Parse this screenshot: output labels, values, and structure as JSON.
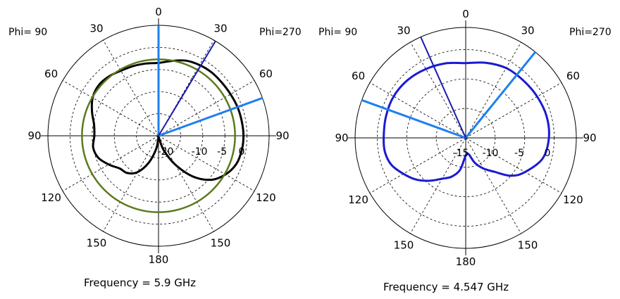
{
  "chart_data": [
    {
      "type": "polar",
      "frequency_label": "Frequency = 5.9 GHz",
      "phi_left": "Phi= 90",
      "phi_right": "Phi=270",
      "angle_labels": [
        "0",
        "30",
        "30",
        "60",
        "60",
        "90",
        "90",
        "120",
        "120",
        "150",
        "150",
        "180"
      ],
      "radial_labels": [
        "-20",
        "-10",
        "-5",
        "0"
      ],
      "radial_levels": [
        -20,
        -15,
        -10,
        -5,
        0
      ],
      "rlim": [
        -20,
        0
      ],
      "grid": true,
      "series": [
        {
          "color": "#000000",
          "points": [
            [
              0,
              -3.5
            ],
            [
              10,
              -2.8
            ],
            [
              20,
              -1.9
            ],
            [
              30,
              -1.5
            ],
            [
              40,
              -1.3
            ],
            [
              50,
              -1.3
            ],
            [
              60,
              -1.2
            ],
            [
              70,
              -1.0
            ],
            [
              80,
              -0.9
            ],
            [
              90,
              -0.8
            ],
            [
              100,
              -0.9
            ],
            [
              110,
              -1.3
            ],
            [
              120,
              -2.5
            ],
            [
              130,
              -4.5
            ],
            [
              140,
              -8.0
            ],
            [
              150,
              -12.5
            ],
            [
              160,
              -16.5
            ],
            [
              170,
              -19.5
            ],
            [
              180,
              -19.8
            ],
            [
              190,
              -17.0
            ],
            [
              200,
              -13.5
            ],
            [
              210,
              -10.5
            ],
            [
              220,
              -9.0
            ],
            [
              230,
              -8.5
            ],
            [
              240,
              -7.0
            ],
            [
              250,
              -5.5
            ],
            [
              260,
              -5.0
            ],
            [
              270,
              -5.5
            ],
            [
              280,
              -5.2
            ],
            [
              290,
              -4.0
            ],
            [
              300,
              -2.8
            ],
            [
              310,
              -2.3
            ],
            [
              320,
              -2.5
            ],
            [
              330,
              -3.0
            ],
            [
              340,
              -3.2
            ],
            [
              350,
              -3.4
            ]
          ]
        },
        {
          "color": "#5a7a1e",
          "points": [
            [
              0,
              -2.7
            ],
            [
              90,
              -2.7
            ],
            [
              180,
              -2.7
            ],
            [
              270,
              -2.7
            ]
          ]
        }
      ],
      "markers": [
        {
          "theta": 0,
          "color": "#1e7ff0"
        },
        {
          "theta": 70,
          "color": "#1e7ff0"
        },
        {
          "theta": 31,
          "color": "#1a1ab0"
        }
      ]
    },
    {
      "type": "polar",
      "frequency_label": "Frequency = 4.547 GHz",
      "phi_left": "Phi= 90",
      "phi_right": "Phi=270",
      "angle_labels": [
        "0",
        "30",
        "30",
        "60",
        "60",
        "90",
        "90",
        "120",
        "120",
        "150",
        "150",
        "180"
      ],
      "radial_labels": [
        "-15",
        "-10",
        "-5",
        "0"
      ],
      "radial_levels": [
        -15,
        -10,
        -5,
        0
      ],
      "rlim": [
        -15,
        0
      ],
      "grid": true,
      "series": [
        {
          "color": "#1a1ad0",
          "points": [
            [
              0,
              -2.3
            ],
            [
              15,
              -1.8
            ],
            [
              30,
              -1.3
            ],
            [
              45,
              -1.2
            ],
            [
              60,
              -1.0
            ],
            [
              75,
              -0.8
            ],
            [
              90,
              -0.9
            ],
            [
              105,
              -1.5
            ],
            [
              120,
              -3.4
            ],
            [
              130,
              -5.0
            ],
            [
              140,
              -7.5
            ],
            [
              150,
              -9.0
            ],
            [
              160,
              -10.5
            ],
            [
              170,
              -12.2
            ],
            [
              180,
              -12.0
            ],
            [
              190,
              -9.5
            ],
            [
              200,
              -8.0
            ],
            [
              210,
              -7.0
            ],
            [
              220,
              -5.5
            ],
            [
              230,
              -4.0
            ],
            [
              240,
              -2.8
            ],
            [
              250,
              -1.6
            ],
            [
              260,
              -1.1
            ],
            [
              270,
              -1.1
            ],
            [
              285,
              -1.0
            ],
            [
              300,
              -0.9
            ],
            [
              315,
              -1.1
            ],
            [
              330,
              -1.5
            ],
            [
              345,
              -1.9
            ]
          ]
        }
      ],
      "markers": [
        {
          "theta": 39,
          "color": "#1e7ff0"
        },
        {
          "theta": 290,
          "color": "#1e7ff0"
        },
        {
          "theta": 336,
          "color": "#1a1ab0"
        }
      ]
    }
  ]
}
